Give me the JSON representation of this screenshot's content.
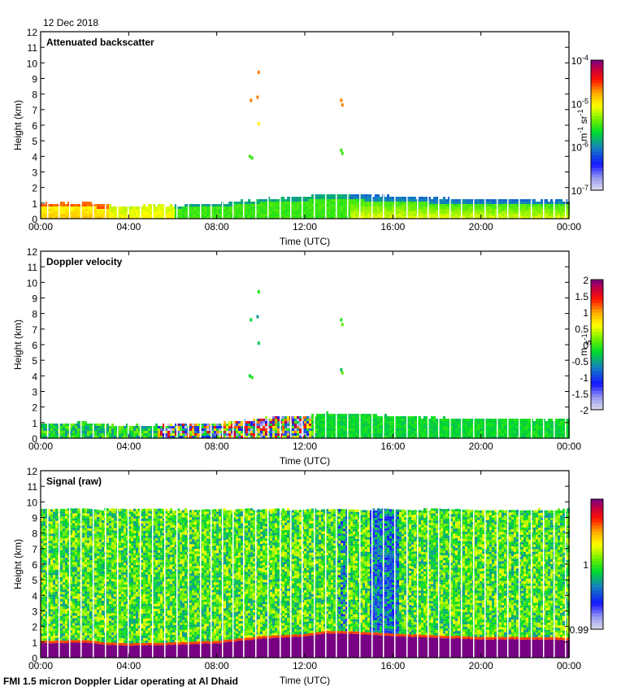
{
  "date_label": "12 Dec 2018",
  "footer": "FMI 1.5 micron Doppler Lidar operating at Al Dhaid",
  "chart_data": [
    {
      "type": "heatmap",
      "title": "Attenuated backscatter",
      "xlabel": "Time (UTC)",
      "ylabel": "Height (km)",
      "x_ticks": [
        "00:00",
        "04:00",
        "08:00",
        "12:00",
        "16:00",
        "20:00",
        "00:00"
      ],
      "y_ticks": [
        "0",
        "1",
        "2",
        "3",
        "4",
        "5",
        "6",
        "7",
        "8",
        "9",
        "10",
        "11",
        "12"
      ],
      "xlim_hours": [
        0,
        24
      ],
      "ylim_km": [
        0,
        12
      ],
      "colorbar": {
        "scale": "log",
        "range": [
          1e-07,
          0.0001
        ],
        "tick_labels": [
          "10-7",
          "10-6",
          "10-5",
          "10-4"
        ],
        "tick_bases": [
          "10",
          "10",
          "10",
          "10"
        ],
        "tick_exps": [
          "-7",
          "-6",
          "-5",
          "-4"
        ],
        "unit_base": [
          "m",
          "sr"
        ],
        "unit_exp": [
          "-1",
          "-1"
        ],
        "unit_label": "m-1 sr-1"
      },
      "boundary_layer_top_km": {
        "hours": [
          0,
          2,
          3,
          4,
          6,
          8,
          10,
          12,
          13,
          14,
          15,
          16,
          18,
          20,
          22,
          24
        ],
        "heights": [
          1.0,
          1.05,
          0.9,
          0.85,
          0.9,
          1.0,
          1.3,
          1.45,
          1.65,
          1.6,
          1.55,
          1.45,
          1.35,
          1.25,
          1.25,
          1.2
        ]
      },
      "notes": "Near-surface aerosol layer below ~1-1.7 km; sparse returns at ~4, 7.7 and 9.5 km near 09:30-10:00 and 13:30"
    },
    {
      "type": "heatmap",
      "title": "Doppler velocity",
      "xlabel": "Time (UTC)",
      "ylabel": "Height (km)",
      "x_ticks": [
        "00:00",
        "04:00",
        "08:00",
        "12:00",
        "16:00",
        "20:00",
        "00:00"
      ],
      "y_ticks": [
        "0",
        "1",
        "2",
        "3",
        "4",
        "5",
        "6",
        "7",
        "8",
        "9",
        "10",
        "11",
        "12"
      ],
      "xlim_hours": [
        0,
        24
      ],
      "ylim_km": [
        0,
        12
      ],
      "colorbar": {
        "scale": "linear",
        "range": [
          -2,
          2
        ],
        "tick_labels": [
          "2",
          "1.5",
          "1",
          "0.5",
          "0",
          "-0.5",
          "-1",
          "-1.5",
          "-2"
        ],
        "unit_base": [
          "m",
          "s"
        ],
        "unit_exp": [
          "",
          "-1"
        ],
        "unit_label": "m s-1"
      },
      "notes": "Mostly near-zero velocity; convective up/down mixing 05:30-12:00"
    },
    {
      "type": "heatmap",
      "title": "Signal (raw)",
      "xlabel": "Time (UTC)",
      "ylabel": "Height (km)",
      "x_ticks": [
        "00:00",
        "04:00",
        "08:00",
        "12:00",
        "16:00",
        "20:00",
        "00:00"
      ],
      "y_ticks": [
        "0",
        "1",
        "2",
        "3",
        "4",
        "5",
        "6",
        "7",
        "8",
        "9",
        "10",
        "11",
        "12"
      ],
      "xlim_hours": [
        0,
        24
      ],
      "ylim_km": [
        0,
        12
      ],
      "data_top_km": 9.6,
      "colorbar": {
        "scale": "linear",
        "range": [
          0.99,
          1.01
        ],
        "tick_labels": [
          "1",
          "0.99"
        ]
      },
      "notes": "Saturated (purple) signal below boundary layer top ~1-1.6 km"
    }
  ]
}
